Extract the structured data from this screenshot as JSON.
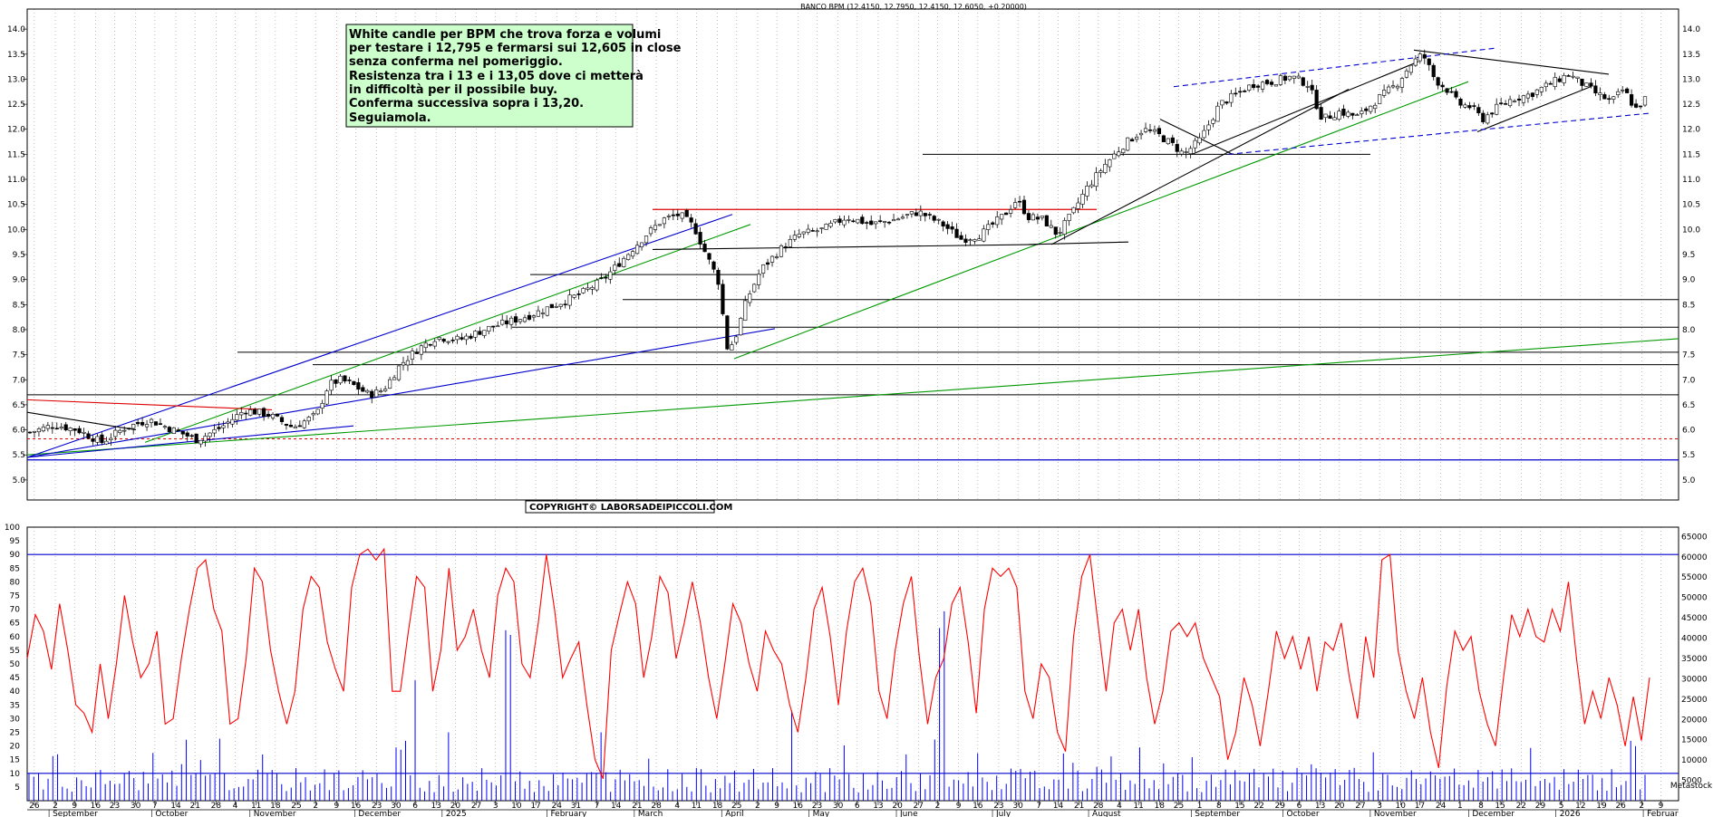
{
  "chart_data": [
    {
      "type": "candlestick",
      "title": "BANCO BPM (12.4150, 12.7950, 12.4150, 12.6050, +0.20000)",
      "ylim": [
        4.6,
        14.4
      ],
      "y_ticks": [
        5.0,
        5.5,
        6.0,
        6.5,
        7.0,
        7.5,
        8.0,
        8.5,
        9.0,
        9.5,
        10.0,
        10.5,
        11.0,
        11.5,
        12.0,
        12.5,
        13.0,
        13.5,
        14.0
      ],
      "grid": "vertical-dotted",
      "close_path": [
        [
          0,
          5.95
        ],
        [
          10,
          6.1
        ],
        [
          20,
          6.0
        ],
        [
          30,
          5.75
        ],
        [
          40,
          6.05
        ],
        [
          50,
          6.2
        ],
        [
          60,
          6.0
        ],
        [
          70,
          5.8
        ],
        [
          80,
          6.05
        ],
        [
          90,
          6.4
        ],
        [
          100,
          6.3
        ],
        [
          110,
          6.05
        ],
        [
          120,
          6.3
        ],
        [
          125,
          6.9
        ],
        [
          130,
          7.0
        ],
        [
          135,
          6.9
        ],
        [
          142,
          6.7
        ],
        [
          148,
          6.8
        ],
        [
          155,
          7.3
        ],
        [
          162,
          7.6
        ],
        [
          170,
          7.85
        ],
        [
          180,
          7.8
        ],
        [
          190,
          8.0
        ],
        [
          200,
          8.15
        ],
        [
          210,
          8.3
        ],
        [
          220,
          8.5
        ],
        [
          230,
          8.7
        ],
        [
          240,
          9.0
        ],
        [
          250,
          9.5
        ],
        [
          258,
          9.9
        ],
        [
          265,
          10.2
        ],
        [
          272,
          10.3
        ],
        [
          278,
          10.05
        ],
        [
          283,
          9.5
        ],
        [
          288,
          9.0
        ],
        [
          292,
          7.6
        ],
        [
          295,
          7.8
        ],
        [
          300,
          8.6
        ],
        [
          306,
          9.2
        ],
        [
          314,
          9.6
        ],
        [
          322,
          9.9
        ],
        [
          332,
          10.0
        ],
        [
          342,
          10.25
        ],
        [
          352,
          10.1
        ],
        [
          362,
          10.2
        ],
        [
          372,
          10.35
        ],
        [
          382,
          10.1
        ],
        [
          390,
          9.8
        ],
        [
          398,
          9.9
        ],
        [
          408,
          10.3
        ],
        [
          413,
          10.6
        ],
        [
          418,
          10.25
        ],
        [
          424,
          10.2
        ],
        [
          430,
          9.9
        ],
        [
          436,
          10.3
        ],
        [
          442,
          10.8
        ],
        [
          450,
          11.3
        ],
        [
          458,
          11.7
        ],
        [
          466,
          12.0
        ],
        [
          472,
          11.9
        ],
        [
          478,
          11.7
        ],
        [
          483,
          11.5
        ],
        [
          490,
          11.8
        ],
        [
          498,
          12.5
        ],
        [
          505,
          12.7
        ],
        [
          512,
          12.9
        ],
        [
          520,
          12.95
        ],
        [
          528,
          13.05
        ],
        [
          535,
          12.9
        ],
        [
          541,
          12.2
        ],
        [
          548,
          12.35
        ],
        [
          556,
          12.25
        ],
        [
          564,
          12.6
        ],
        [
          572,
          12.9
        ],
        [
          578,
          13.3
        ],
        [
          583,
          13.5
        ],
        [
          588,
          13.0
        ],
        [
          593,
          12.8
        ],
        [
          598,
          12.5
        ],
        [
          603,
          12.45
        ],
        [
          608,
          12.2
        ],
        [
          613,
          12.4
        ],
        [
          620,
          12.6
        ],
        [
          628,
          12.7
        ],
        [
          636,
          12.9
        ],
        [
          644,
          13.1
        ],
        [
          650,
          12.9
        ],
        [
          656,
          12.7
        ],
        [
          662,
          12.55
        ],
        [
          667,
          12.8
        ],
        [
          672,
          12.4
        ],
        [
          676,
          12.6
        ]
      ],
      "horizontal_levels_black": [
        5.85,
        5.5,
        5.2,
        6.7,
        7.3,
        7.55,
        8.05,
        8.6
      ],
      "dashed_red_level": 5.82,
      "blue_level": 5.4
    },
    {
      "type": "line",
      "ylim": [
        0,
        100
      ],
      "y_ticks": [
        5,
        10,
        15,
        20,
        25,
        30,
        35,
        40,
        45,
        50,
        55,
        60,
        65,
        70,
        75,
        80,
        85,
        90,
        95,
        100
      ],
      "right_axis_ticks": [
        5000,
        10000,
        15000,
        20000,
        25000,
        30000,
        35000,
        40000,
        45000,
        50000,
        55000,
        60000,
        65000
      ],
      "series": [
        {
          "color": "#ff0000",
          "values": [
            52,
            68,
            62,
            48,
            72,
            55,
            35,
            32,
            25,
            50,
            30,
            50,
            75,
            58,
            45,
            50,
            62,
            28,
            30,
            52,
            70,
            85,
            88,
            70,
            62,
            28,
            30,
            52,
            85,
            80,
            55,
            40,
            28,
            40,
            70,
            82,
            78,
            58,
            48,
            40,
            78,
            90,
            92,
            88,
            92,
            40,
            40,
            62,
            82,
            78,
            40,
            55,
            85,
            55,
            60,
            70,
            55,
            45,
            75,
            85,
            80,
            50,
            45,
            65,
            90,
            70,
            45,
            52,
            58,
            35,
            15,
            8,
            55,
            68,
            80,
            72,
            45,
            60,
            82,
            76,
            52,
            65,
            80,
            65,
            45,
            30,
            50,
            72,
            65,
            50,
            40,
            62,
            55,
            50,
            35,
            25,
            45,
            70,
            78,
            60,
            35,
            62,
            80,
            85,
            72,
            40,
            30,
            55,
            72,
            82,
            52,
            28,
            45,
            52,
            72,
            78,
            58,
            32,
            70,
            85,
            82,
            85,
            78,
            40,
            30,
            50,
            45,
            25,
            18,
            60,
            82,
            90,
            65,
            40,
            65,
            70,
            55,
            70,
            45,
            28,
            40,
            62,
            65,
            60,
            65,
            52,
            45,
            38,
            15,
            25,
            45,
            35,
            20,
            40,
            62,
            52,
            60,
            48,
            60,
            40,
            58,
            55,
            65,
            45,
            30,
            60,
            45,
            88,
            90,
            55,
            40,
            30,
            45,
            25,
            12,
            42,
            62,
            55,
            60,
            40,
            28,
            20,
            45,
            68,
            60,
            70,
            60,
            58,
            70,
            62,
            80,
            52,
            28,
            40,
            30,
            45,
            35,
            20,
            38,
            22,
            45
          ]
        }
      ],
      "horizontal_levels_blue": [
        90,
        10
      ]
    }
  ],
  "x_axis": {
    "day_ticks": [
      [
        "26",
        2
      ],
      [
        "2",
        14
      ],
      [
        "9",
        25
      ],
      [
        "16",
        37
      ],
      [
        "23",
        48
      ],
      [
        "30",
        60
      ],
      [
        "7",
        71
      ],
      [
        "14",
        83
      ],
      [
        "21",
        94
      ],
      [
        "28",
        106
      ],
      [
        "4",
        117
      ],
      [
        "11",
        129
      ],
      [
        "18",
        140
      ],
      [
        "25",
        152
      ],
      [
        "2",
        163
      ],
      [
        "9",
        175
      ],
      [
        "16",
        186
      ],
      [
        "23",
        198
      ],
      [
        "30",
        209
      ],
      [
        "6",
        220
      ],
      [
        "13",
        232
      ],
      [
        "20",
        243
      ],
      [
        "27",
        255
      ],
      [
        "3",
        266
      ],
      [
        "10",
        278
      ],
      [
        "17",
        289
      ],
      [
        "24",
        301
      ],
      [
        "31",
        312
      ],
      [
        "7",
        324
      ],
      [
        "14",
        335
      ],
      [
        "21",
        347
      ],
      [
        "28",
        358
      ],
      [
        "4",
        370
      ],
      [
        "11",
        381
      ],
      [
        "18",
        393
      ],
      [
        "25",
        404
      ],
      [
        "2",
        416
      ],
      [
        "9",
        427
      ],
      [
        "16",
        439
      ],
      [
        "23",
        450
      ],
      [
        "30",
        462
      ],
      [
        "6",
        473
      ],
      [
        "13",
        485
      ],
      [
        "20",
        496
      ],
      [
        "27",
        508
      ],
      [
        "2",
        519
      ],
      [
        "9",
        531
      ],
      [
        "16",
        542
      ],
      [
        "23",
        554
      ],
      [
        "30",
        565
      ],
      [
        "7",
        577
      ],
      [
        "14",
        588
      ],
      [
        "21",
        600
      ],
      [
        "28",
        611
      ],
      [
        "4",
        623
      ],
      [
        "11",
        634
      ],
      [
        "18",
        646
      ],
      [
        "25",
        657
      ],
      [
        "1",
        669
      ],
      [
        "8",
        680
      ],
      [
        "15",
        692
      ],
      [
        "22",
        703
      ],
      [
        "29",
        715
      ],
      [
        "6",
        726
      ],
      [
        "13",
        738
      ],
      [
        "20",
        749
      ],
      [
        "27",
        761
      ],
      [
        "3",
        772
      ],
      [
        "10",
        784
      ],
      [
        "17",
        795
      ],
      [
        "24",
        807
      ],
      [
        "1",
        818
      ],
      [
        "8",
        830
      ],
      [
        "15",
        841
      ],
      [
        "22",
        853
      ],
      [
        "29",
        864
      ],
      [
        "5",
        876
      ],
      [
        "12",
        887
      ],
      [
        "19",
        899
      ],
      [
        "26",
        910
      ],
      [
        "2",
        922
      ],
      [
        "9",
        933
      ]
    ],
    "month_labels": [
      [
        "September",
        10
      ],
      [
        "October",
        57
      ],
      [
        "November",
        102
      ],
      [
        "December",
        150
      ],
      [
        "2025",
        190
      ],
      [
        "February",
        238
      ],
      [
        "March",
        278
      ],
      [
        "April",
        318
      ],
      [
        "May",
        358
      ],
      [
        "June",
        398
      ],
      [
        "July",
        442
      ],
      [
        "August",
        486
      ],
      [
        "September",
        533
      ],
      [
        "October",
        575
      ],
      [
        "November",
        615
      ],
      [
        "December",
        660
      ],
      [
        "2026",
        700
      ],
      [
        "Februar",
        740
      ]
    ]
  },
  "annotations": {
    "comment_lines": [
      "White candle per BPM che trova forza e volumi",
      "per testare i 12,795 e fermarsi sui 12,605 in close",
      "senza conferma nel pomeriggio.",
      "Resistenza tra i 13 e i 13,05 dove ci metterà",
      "in difficoltà per il possibile buy.",
      "Conferma successiva sopra i 13,20.",
      "Seguiamola."
    ],
    "copyright": "COPYRIGHT© LABORSADEIPICCOLI.COM",
    "corner_label": "Metastock"
  },
  "colors": {
    "up_candle": "#ffffff",
    "down_candle": "#000000",
    "trend_green": "#009900",
    "trend_blue": "#0000cc",
    "resistance_red": "#dd0000",
    "osc_red": "#ff0000",
    "volume_blue": "#0000ff",
    "grid": "#9a9a9a",
    "comment_bg": "#ccffcc"
  }
}
